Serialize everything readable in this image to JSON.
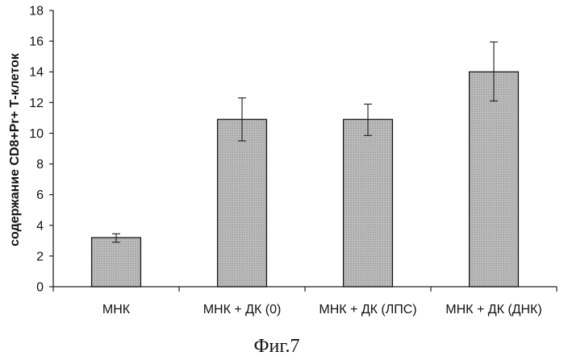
{
  "chart_data": {
    "type": "bar",
    "title": "",
    "xlabel": "",
    "ylabel": "содержание CD8+Pr+ Т-клеток",
    "ylim": [
      0,
      18
    ],
    "yticks": [
      0,
      2,
      4,
      6,
      8,
      10,
      12,
      14,
      16,
      18
    ],
    "grid": false,
    "categories": [
      "МНК",
      "МНК + ДК (0)",
      "МНК + ДК (ЛПС)",
      "МНК + ДК (ДНК)"
    ],
    "values": [
      3.2,
      10.9,
      10.9,
      14.0
    ],
    "error_low": [
      2.9,
      9.5,
      9.85,
      12.1
    ],
    "error_high": [
      3.45,
      12.3,
      11.9,
      15.95
    ],
    "bar_color": "#b8b8b8",
    "caption": "Фиг.7"
  }
}
